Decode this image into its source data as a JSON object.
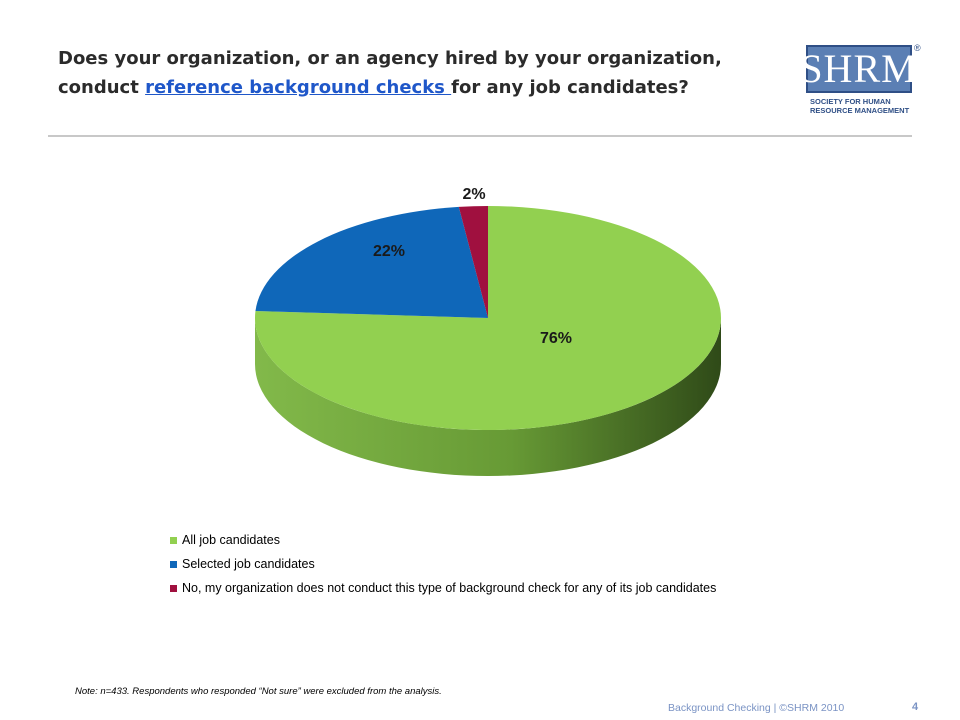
{
  "header": {
    "title_part1": "Does your organization, or an agency hired by your organization, conduct ",
    "title_link": "reference background checks ",
    "title_part2": "for any job candidates?"
  },
  "logo": {
    "text": "SHRM",
    "registered": "®",
    "subtitle": "Society for Human Resource Management"
  },
  "chart_data": {
    "type": "pie",
    "style": "3d",
    "labels": [
      "All job candidates",
      "Selected job candidates",
      "No, my organization does not conduct this type of background check for any of its job candidates"
    ],
    "values": [
      76,
      22,
      2
    ],
    "value_labels": [
      "76%",
      "22%",
      "2%"
    ],
    "colors": [
      "#92d050",
      "#0f67b9",
      "#a0103f"
    ],
    "legend_position": "bottom"
  },
  "note": "Note: n=433. Respondents who responded “Not sure” were excluded from the analysis.",
  "footer": {
    "text": "Background Checking | ©SHRM 2010",
    "page": "4"
  }
}
